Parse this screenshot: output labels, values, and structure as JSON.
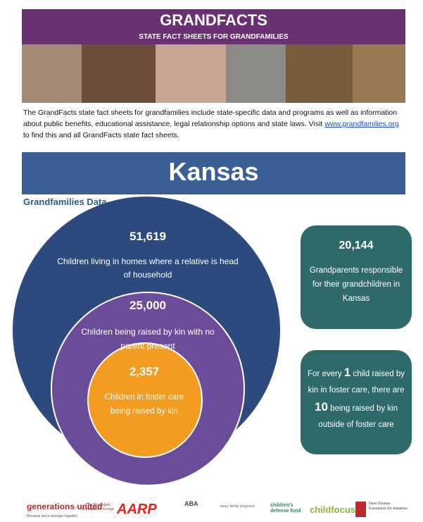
{
  "header": {
    "title": "GRANDFACTS",
    "subtitle": "STATE FACT SHEETS FOR GRANDFAMILIES"
  },
  "intro": {
    "text": "The GrandFacts state fact sheets for grandfamilies include state-specific data and programs as well as information about public benefits, educational assistance, legal relationship options and state laws. Visit",
    "link": "www.grandfamilies.org",
    "text_after": "to find this and all GrandFacts state fact sheets."
  },
  "state": "Kansas",
  "section_title": "Grandfamilies Data",
  "circles": [
    {
      "value": "51,619",
      "label": "Children living in homes where a relative is head of household"
    },
    {
      "value": "25,000",
      "label": "Children being raised by kin with no parent present"
    },
    {
      "value": "2,357",
      "label": "Children in foster care being raised by kin"
    }
  ],
  "boxes": [
    {
      "value": "20,144",
      "label": "Grandparents responsible for their grandchildren in Kansas"
    },
    {
      "parts": [
        "For every",
        "1",
        "child raised by kin in foster care, there are",
        "10",
        "being raised by kin outside of foster care"
      ]
    }
  ],
  "logos": [
    "generations united",
    "Because we're stronger together",
    "The Brookdale Foundation Group",
    "AARP",
    "ABA",
    "casey family programs",
    "children's defense fund",
    "childfocus",
    "Dave Thomas Foundation for Adoption"
  ]
}
